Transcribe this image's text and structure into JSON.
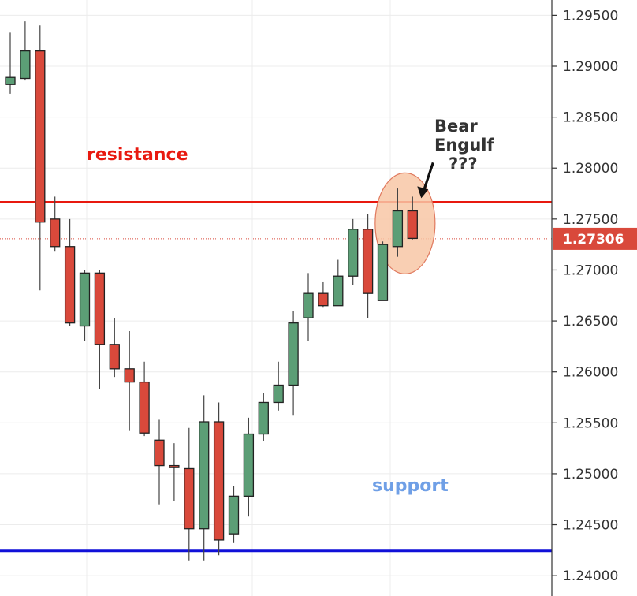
{
  "chart_data": {
    "type": "candlestick",
    "grid": true,
    "ylim": [
      1.238,
      1.2965
    ],
    "y_ticks": [
      "1.29500",
      "1.29000",
      "1.28500",
      "1.28000",
      "1.27500",
      "1.27000",
      "1.26500",
      "1.26000",
      "1.25500",
      "1.25000",
      "1.24500",
      "1.24000"
    ],
    "current_price": {
      "label": "1.27306",
      "value": 1.27306,
      "color": "#d9493b"
    },
    "candles": [
      {
        "o": 1.2882,
        "h": 1.2933,
        "l": 1.2873,
        "c": 1.2889
      },
      {
        "o": 1.2888,
        "h": 1.2944,
        "l": 1.2886,
        "c": 1.2915
      },
      {
        "o": 1.2915,
        "h": 1.294,
        "l": 1.268,
        "c": 1.2747
      },
      {
        "o": 1.275,
        "h": 1.2772,
        "l": 1.2718,
        "c": 1.2723
      },
      {
        "o": 1.2723,
        "h": 1.275,
        "l": 1.2645,
        "c": 1.2648
      },
      {
        "o": 1.2645,
        "h": 1.27,
        "l": 1.263,
        "c": 1.2697
      },
      {
        "o": 1.2697,
        "h": 1.27,
        "l": 1.2583,
        "c": 1.2627
      },
      {
        "o": 1.2627,
        "h": 1.2653,
        "l": 1.2595,
        "c": 1.2603
      },
      {
        "o": 1.2603,
        "h": 1.264,
        "l": 1.2542,
        "c": 1.259
      },
      {
        "o": 1.259,
        "h": 1.261,
        "l": 1.2537,
        "c": 1.254
      },
      {
        "o": 1.2533,
        "h": 1.2553,
        "l": 1.247,
        "c": 1.2508
      },
      {
        "o": 1.2508,
        "h": 1.253,
        "l": 1.2473,
        "c": 1.2506
      },
      {
        "o": 1.2505,
        "h": 1.2545,
        "l": 1.2415,
        "c": 1.2446
      },
      {
        "o": 1.2446,
        "h": 1.2577,
        "l": 1.2415,
        "c": 1.2551
      },
      {
        "o": 1.2551,
        "h": 1.257,
        "l": 1.242,
        "c": 1.2435
      },
      {
        "o": 1.2441,
        "h": 1.2488,
        "l": 1.2432,
        "c": 1.2478
      },
      {
        "o": 1.2478,
        "h": 1.2555,
        "l": 1.2458,
        "c": 1.2539
      },
      {
        "o": 1.2539,
        "h": 1.2579,
        "l": 1.2532,
        "c": 1.257
      },
      {
        "o": 1.257,
        "h": 1.261,
        "l": 1.2562,
        "c": 1.2587
      },
      {
        "o": 1.2587,
        "h": 1.266,
        "l": 1.2557,
        "c": 1.2648
      },
      {
        "o": 1.2653,
        "h": 1.2697,
        "l": 1.263,
        "c": 1.2677
      },
      {
        "o": 1.2677,
        "h": 1.2688,
        "l": 1.2663,
        "c": 1.2665
      },
      {
        "o": 1.2665,
        "h": 1.271,
        "l": 1.2665,
        "c": 1.2694
      },
      {
        "o": 1.2694,
        "h": 1.275,
        "l": 1.2685,
        "c": 1.274
      },
      {
        "o": 1.274,
        "h": 1.2755,
        "l": 1.2653,
        "c": 1.2677
      },
      {
        "o": 1.267,
        "h": 1.2728,
        "l": 1.267,
        "c": 1.2725
      },
      {
        "o": 1.2723,
        "h": 1.278,
        "l": 1.2713,
        "c": 1.2758
      },
      {
        "o": 1.2758,
        "h": 1.2772,
        "l": 1.273,
        "c": 1.2731
      }
    ],
    "lines": [
      {
        "name": "resistance",
        "value": 1.27665,
        "color": "#e8190f"
      },
      {
        "name": "support",
        "value": 1.24243,
        "color": "#1010d8"
      }
    ],
    "annotations": {
      "resistance_label": "resistance",
      "support_label": "support",
      "bear_label_line1": "Bear",
      "bear_label_line2": "Engulf",
      "bear_label_line3": "???"
    },
    "colors": {
      "up_body": "#5c9e76",
      "down_body": "#d9493b",
      "candle_outline": "#222222",
      "grid": "#ececec",
      "resistance_text": "#e8190f",
      "support_text": "#6f9fe6",
      "highlight_fill": "#f8c7a6",
      "highlight_stroke": "#e07a5f"
    }
  }
}
